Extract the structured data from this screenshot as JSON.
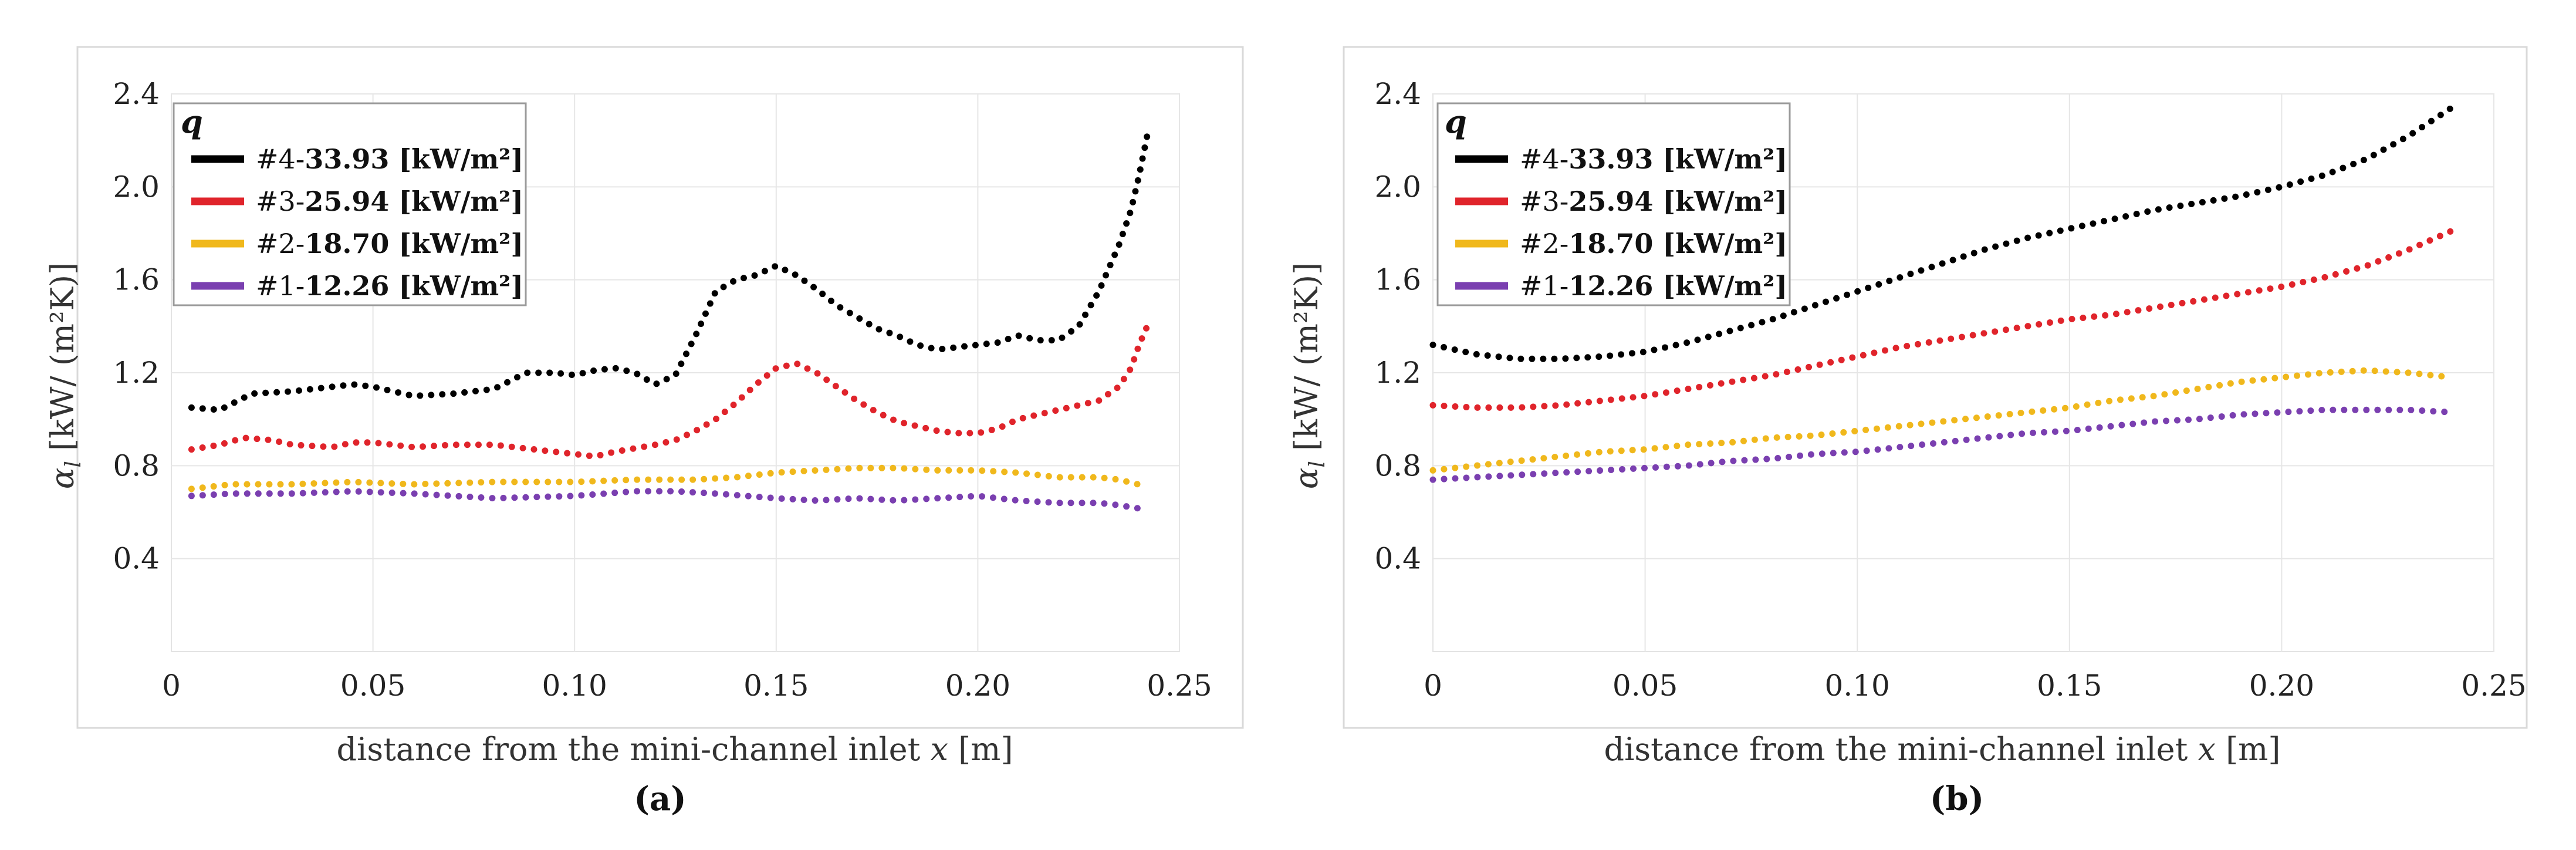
{
  "chart_data": [
    {
      "type": "line",
      "panel_label": "(a)",
      "xlabel": "distance from the mini-channel inlet",
      "xlabel_var": "x",
      "xlabel_unit": "[m]",
      "ylabel": "[kW/ (m²K)]",
      "ylabel_symbol": "α",
      "ylabel_subscript": "l",
      "xlim": [
        0,
        0.25
      ],
      "ylim": [
        0,
        2.4
      ],
      "xticks": [
        0,
        0.05,
        0.1,
        0.15,
        0.2,
        0.25
      ],
      "xtick_labels": [
        "0",
        "0.05",
        "0.10",
        "0.15",
        "0.20",
        "0.25"
      ],
      "yticks": [
        0.4,
        0.8,
        1.2,
        1.6,
        2.0,
        2.4
      ],
      "ytick_labels": [
        "0.4",
        "0.8",
        "1.2",
        "1.6",
        "2.0",
        "2.4"
      ],
      "grid": true,
      "legend_title": "q",
      "legend_position": "top-left",
      "series": [
        {
          "name_prefix": "#4-",
          "name_value": "33.93",
          "name_unit": "[kW/m²]",
          "color": "#000000",
          "x": [
            0.005,
            0.012,
            0.02,
            0.03,
            0.04,
            0.045,
            0.05,
            0.06,
            0.07,
            0.08,
            0.088,
            0.095,
            0.1,
            0.105,
            0.11,
            0.115,
            0.12,
            0.125,
            0.13,
            0.135,
            0.14,
            0.145,
            0.15,
            0.155,
            0.16,
            0.165,
            0.17,
            0.175,
            0.18,
            0.185,
            0.19,
            0.195,
            0.2,
            0.205,
            0.21,
            0.215,
            0.22,
            0.225,
            0.23,
            0.235,
            0.238,
            0.24,
            0.242
          ],
          "y": [
            1.05,
            1.04,
            1.11,
            1.12,
            1.14,
            1.15,
            1.14,
            1.1,
            1.11,
            1.13,
            1.2,
            1.2,
            1.19,
            1.21,
            1.22,
            1.2,
            1.15,
            1.19,
            1.36,
            1.55,
            1.6,
            1.62,
            1.66,
            1.62,
            1.56,
            1.49,
            1.44,
            1.39,
            1.36,
            1.32,
            1.3,
            1.31,
            1.32,
            1.33,
            1.36,
            1.34,
            1.34,
            1.4,
            1.55,
            1.75,
            1.9,
            2.05,
            2.22
          ]
        },
        {
          "name_prefix": "#3-",
          "name_value": "25.94",
          "name_unit": "[kW/m²]",
          "color": "#e0242b",
          "x": [
            0.005,
            0.012,
            0.018,
            0.025,
            0.03,
            0.04,
            0.045,
            0.05,
            0.06,
            0.07,
            0.08,
            0.09,
            0.1,
            0.105,
            0.11,
            0.12,
            0.125,
            0.13,
            0.135,
            0.14,
            0.145,
            0.15,
            0.155,
            0.16,
            0.165,
            0.17,
            0.175,
            0.18,
            0.185,
            0.19,
            0.195,
            0.2,
            0.205,
            0.21,
            0.22,
            0.225,
            0.23,
            0.235,
            0.238,
            0.24,
            0.242
          ],
          "y": [
            0.87,
            0.89,
            0.92,
            0.91,
            0.89,
            0.88,
            0.9,
            0.9,
            0.88,
            0.89,
            0.89,
            0.87,
            0.85,
            0.84,
            0.86,
            0.89,
            0.91,
            0.95,
            1.0,
            1.07,
            1.15,
            1.22,
            1.24,
            1.2,
            1.14,
            1.08,
            1.03,
            0.99,
            0.97,
            0.95,
            0.94,
            0.94,
            0.96,
            1.0,
            1.04,
            1.06,
            1.08,
            1.14,
            1.22,
            1.32,
            1.4
          ]
        },
        {
          "name_prefix": "#2-",
          "name_value": "18.70",
          "name_unit": "[kW/m²]",
          "color": "#f0b81c",
          "x": [
            0.005,
            0.015,
            0.03,
            0.045,
            0.06,
            0.08,
            0.1,
            0.115,
            0.13,
            0.14,
            0.15,
            0.16,
            0.17,
            0.18,
            0.19,
            0.2,
            0.21,
            0.22,
            0.23,
            0.235,
            0.242
          ],
          "y": [
            0.7,
            0.72,
            0.72,
            0.73,
            0.72,
            0.73,
            0.73,
            0.74,
            0.74,
            0.75,
            0.77,
            0.78,
            0.79,
            0.79,
            0.78,
            0.78,
            0.77,
            0.75,
            0.75,
            0.74,
            0.71
          ]
        },
        {
          "name_prefix": "#1-",
          "name_value": "12.26",
          "name_unit": "[kW/m²]",
          "color": "#7a3fb0",
          "x": [
            0.005,
            0.015,
            0.03,
            0.045,
            0.06,
            0.08,
            0.1,
            0.115,
            0.125,
            0.135,
            0.15,
            0.16,
            0.17,
            0.18,
            0.19,
            0.2,
            0.21,
            0.22,
            0.23,
            0.235,
            0.242
          ],
          "y": [
            0.67,
            0.68,
            0.68,
            0.69,
            0.68,
            0.66,
            0.67,
            0.69,
            0.69,
            0.68,
            0.66,
            0.65,
            0.66,
            0.65,
            0.66,
            0.67,
            0.65,
            0.64,
            0.64,
            0.63,
            0.61
          ]
        }
      ]
    },
    {
      "type": "line",
      "panel_label": "(b)",
      "xlabel": "distance from the mini-channel inlet",
      "xlabel_var": "x",
      "xlabel_unit": "[m]",
      "ylabel": "[kW/ (m²K)]",
      "ylabel_symbol": "α",
      "ylabel_subscript": "l",
      "xlim": [
        0,
        0.25
      ],
      "ylim": [
        0,
        2.4
      ],
      "xticks": [
        0,
        0.05,
        0.1,
        0.15,
        0.2,
        0.25
      ],
      "xtick_labels": [
        "0",
        "0.05",
        "0.10",
        "0.15",
        "0.20",
        "0.25"
      ],
      "yticks": [
        0.4,
        0.8,
        1.2,
        1.6,
        2.0,
        2.4
      ],
      "ytick_labels": [
        "0.4",
        "0.8",
        "1.2",
        "1.6",
        "2.0",
        "2.4"
      ],
      "grid": true,
      "legend_title": "q",
      "legend_position": "top-left",
      "series": [
        {
          "name_prefix": "#4-",
          "name_value": "33.93",
          "name_unit": "[kW/m²]",
          "color": "#000000",
          "x": [
            0.0,
            0.01,
            0.02,
            0.03,
            0.04,
            0.05,
            0.06,
            0.07,
            0.08,
            0.09,
            0.1,
            0.11,
            0.12,
            0.13,
            0.14,
            0.15,
            0.16,
            0.17,
            0.18,
            0.19,
            0.2,
            0.21,
            0.22,
            0.23,
            0.24
          ],
          "y": [
            1.32,
            1.28,
            1.26,
            1.26,
            1.27,
            1.29,
            1.33,
            1.38,
            1.43,
            1.49,
            1.55,
            1.61,
            1.67,
            1.73,
            1.78,
            1.82,
            1.86,
            1.9,
            1.93,
            1.96,
            2.0,
            2.05,
            2.12,
            2.22,
            2.34
          ]
        },
        {
          "name_prefix": "#3-",
          "name_value": "25.94",
          "name_unit": "[kW/m²]",
          "color": "#e0242b",
          "x": [
            0.0,
            0.01,
            0.02,
            0.03,
            0.04,
            0.05,
            0.06,
            0.07,
            0.08,
            0.09,
            0.1,
            0.11,
            0.12,
            0.13,
            0.14,
            0.15,
            0.16,
            0.17,
            0.18,
            0.19,
            0.2,
            0.21,
            0.22,
            0.23,
            0.24
          ],
          "y": [
            1.06,
            1.05,
            1.05,
            1.06,
            1.08,
            1.1,
            1.13,
            1.16,
            1.19,
            1.23,
            1.27,
            1.31,
            1.34,
            1.37,
            1.4,
            1.43,
            1.45,
            1.48,
            1.51,
            1.54,
            1.57,
            1.61,
            1.66,
            1.73,
            1.81
          ]
        },
        {
          "name_prefix": "#2-",
          "name_value": "18.70",
          "name_unit": "[kW/m²]",
          "color": "#f0b81c",
          "x": [
            0.0,
            0.01,
            0.02,
            0.03,
            0.04,
            0.05,
            0.06,
            0.07,
            0.08,
            0.09,
            0.1,
            0.11,
            0.12,
            0.13,
            0.14,
            0.15,
            0.16,
            0.17,
            0.18,
            0.19,
            0.2,
            0.21,
            0.22,
            0.23,
            0.24
          ],
          "y": [
            0.78,
            0.8,
            0.82,
            0.84,
            0.86,
            0.87,
            0.89,
            0.9,
            0.92,
            0.93,
            0.95,
            0.97,
            0.99,
            1.01,
            1.03,
            1.05,
            1.08,
            1.1,
            1.13,
            1.16,
            1.18,
            1.2,
            1.21,
            1.2,
            1.18
          ]
        },
        {
          "name_prefix": "#1-",
          "name_value": "12.26",
          "name_unit": "[kW/m²]",
          "color": "#7a3fb0",
          "x": [
            0.0,
            0.01,
            0.02,
            0.03,
            0.04,
            0.05,
            0.06,
            0.07,
            0.08,
            0.09,
            0.1,
            0.11,
            0.12,
            0.13,
            0.14,
            0.15,
            0.16,
            0.17,
            0.18,
            0.19,
            0.2,
            0.21,
            0.22,
            0.23,
            0.24
          ],
          "y": [
            0.74,
            0.75,
            0.76,
            0.77,
            0.78,
            0.79,
            0.8,
            0.82,
            0.83,
            0.85,
            0.86,
            0.88,
            0.9,
            0.92,
            0.94,
            0.95,
            0.97,
            0.99,
            1.0,
            1.02,
            1.03,
            1.04,
            1.04,
            1.04,
            1.03
          ]
        }
      ]
    }
  ]
}
